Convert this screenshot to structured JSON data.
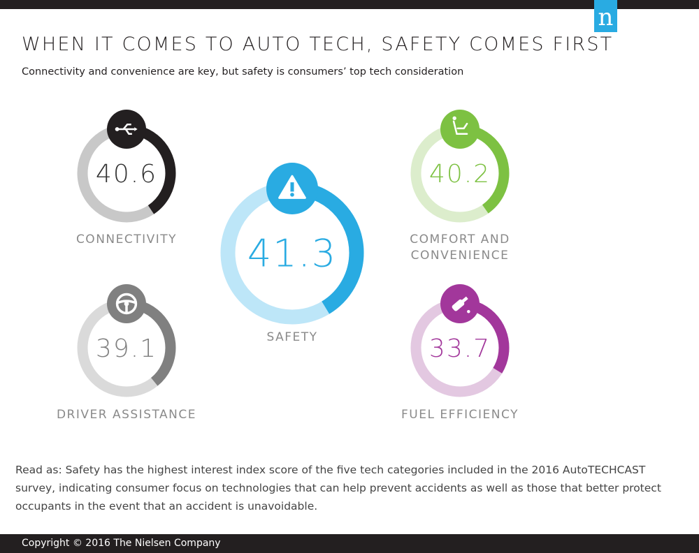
{
  "header": {
    "logo_letter": "n",
    "title": "WHEN IT COMES TO AUTO TECH, SAFETY COMES FIRST",
    "subtitle": "Connectivity and convenience are key, but safety is consumers’ top tech consideration"
  },
  "chart_data": {
    "type": "donut",
    "title": "WHEN IT COMES TO AUTO TECH, SAFETY COMES FIRST",
    "metric": "interest index score",
    "series": [
      {
        "name": "CONNECTIVITY",
        "value": 40.6,
        "label": "40.6",
        "icon": "usb-icon",
        "color": "#231f20",
        "track": "#c8c8c8"
      },
      {
        "name": "SAFETY",
        "value": 41.3,
        "label": "41.3",
        "icon": "warning-icon",
        "color": "#29abe2",
        "track": "#bde6f8"
      },
      {
        "name": "COMFORT AND CONVENIENCE",
        "value": 40.2,
        "label": "40.2",
        "icon": "seat-icon",
        "color": "#7dc142",
        "track": "#dcedcc"
      },
      {
        "name": "DRIVER ASSISTANCE",
        "value": 39.1,
        "label": "39.1",
        "icon": "steering-wheel-icon",
        "color": "#808080",
        "track": "#dadada"
      },
      {
        "name": "FUEL EFFICIENCY",
        "value": 33.7,
        "label": "33.7",
        "icon": "fuel-pump-icon",
        "color": "#a2379b",
        "track": "#e3c8e1"
      }
    ]
  },
  "note": "Read as: Safety has the highest interest index score of the five tech categories included in the 2016 AutoTECHCAST survey, indicating consumer focus on technologies that can help prevent accidents as well as those that better protect occupants in the event that an accident is unavoidable.",
  "footer": {
    "copyright": "Copyright © 2016 The Nielsen Company"
  }
}
